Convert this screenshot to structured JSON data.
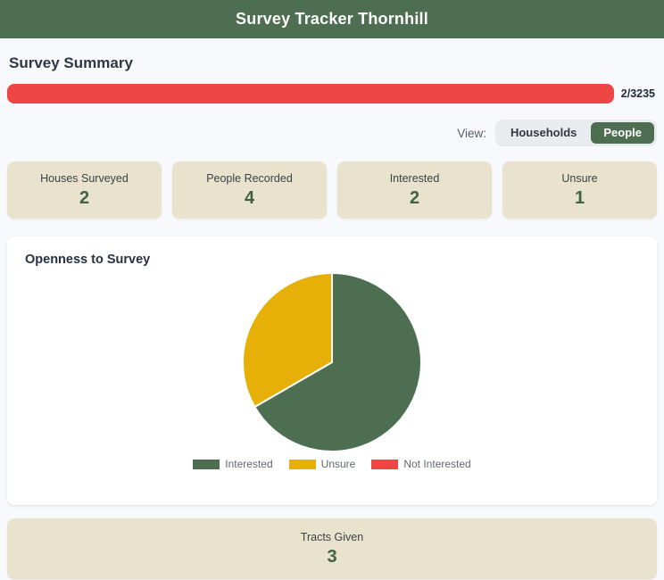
{
  "header": {
    "title": "Survey Tracker Thornhill"
  },
  "summary": {
    "heading": "Survey Summary",
    "progress": {
      "value": 2,
      "total": 3235,
      "label": "2/3235"
    }
  },
  "view_toggle": {
    "label": "View:",
    "options": [
      {
        "label": "Households",
        "selected": false
      },
      {
        "label": "People",
        "selected": true
      }
    ]
  },
  "stat_cards": [
    {
      "label": "Houses Surveyed",
      "value": "2"
    },
    {
      "label": "People Recorded",
      "value": "4"
    },
    {
      "label": "Interested",
      "value": "2"
    },
    {
      "label": "Unsure",
      "value": "1"
    }
  ],
  "chart_card": {
    "title": "Openness to Survey"
  },
  "chart_data": {
    "type": "pie",
    "title": "Openness to Survey",
    "labels": [
      "Interested",
      "Unsure",
      "Not Interested"
    ],
    "values": [
      2,
      1,
      0
    ],
    "colors": [
      "#4d6e51",
      "#e7b008",
      "#ee4545"
    ],
    "legend_position": "bottom",
    "start_angle_deg": 0,
    "direction": "clockwise"
  },
  "tracts_card": {
    "label": "Tracts Given",
    "value": "3"
  },
  "theme": {
    "green": "#4d6e51",
    "red": "#ee4545",
    "gold": "#e7b008",
    "beige": "#e9e2cc",
    "bg": "#f7f9fc",
    "toggle_bg": "#e9ecef",
    "text_dark": "#2e3744",
    "value_green": "#3f6244"
  }
}
